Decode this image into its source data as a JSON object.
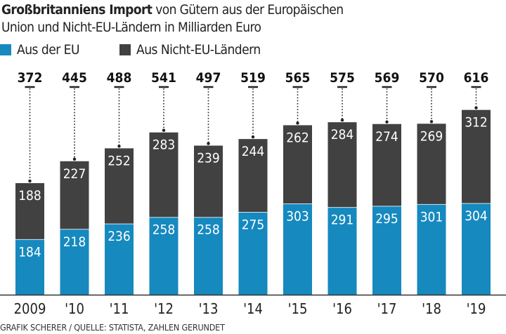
{
  "title": {
    "bold": "Großbritanniens Import",
    "rest_line1": " von Gütern aus der Europäischen",
    "line2": "Union und Nicht-EU-Ländern in Milliarden Euro"
  },
  "colors": {
    "eu": "#1689bf",
    "non_eu": "#414141"
  },
  "source": "GRAFIK SCHERER / QUELLE: STATISTA, ZAHLEN GERUNDET",
  "chart_data": {
    "type": "bar",
    "stacked": true,
    "categories": [
      "2009",
      "'10",
      "'11",
      "'12",
      "'13",
      "'14",
      "'15",
      "'16",
      "'17",
      "'18",
      "'19"
    ],
    "series": [
      {
        "name": "Aus der EU",
        "values": [
          184,
          218,
          236,
          258,
          258,
          275,
          303,
          291,
          295,
          301,
          304
        ]
      },
      {
        "name": "Aus Nicht-EU-Ländern",
        "values": [
          188,
          227,
          252,
          283,
          239,
          244,
          262,
          284,
          274,
          269,
          312
        ]
      }
    ],
    "totals": [
      372,
      445,
      488,
      541,
      497,
      519,
      565,
      575,
      569,
      570,
      616
    ],
    "ylim": [
      0,
      616
    ],
    "grid": false,
    "legend_placement": "top-left"
  }
}
